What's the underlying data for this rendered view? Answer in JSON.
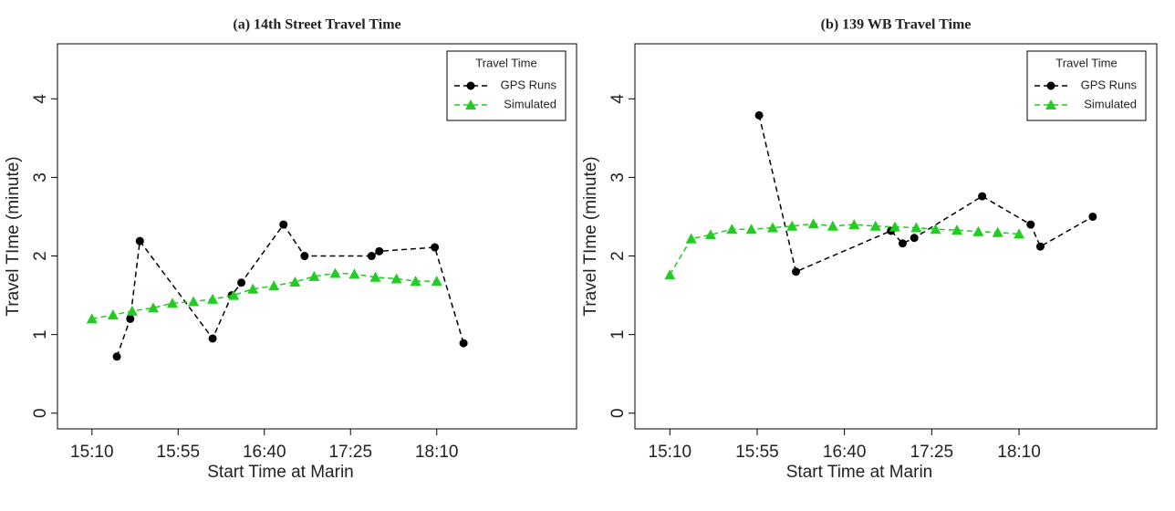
{
  "chart_data": [
    {
      "type": "line",
      "title": "(a) 14th Street Travel Time",
      "xlabel": "Start Time at Marin",
      "ylabel": "Travel TIme (minute)",
      "legend_title": "Travel Time",
      "legend": "top-right",
      "xlim": [
        "14:52",
        "19:23"
      ],
      "xticks": [
        "15:10",
        "15:55",
        "16:40",
        "17:25",
        "18:10"
      ],
      "ylim": [
        -0.2,
        4.7
      ],
      "yticks": [
        0,
        1,
        2,
        3,
        4
      ],
      "series": [
        {
          "name": "GPS Runs",
          "color": "#000000",
          "marker": "circle",
          "x": [
            "15:23",
            "15:30",
            "15:35",
            "16:13",
            "16:23",
            "16:28",
            "16:50",
            "17:01",
            "17:36",
            "17:40",
            "18:09",
            "18:24"
          ],
          "values": [
            0.72,
            1.2,
            2.19,
            0.95,
            1.5,
            1.66,
            2.4,
            2.0,
            2.0,
            2.06,
            2.11,
            0.89
          ]
        },
        {
          "name": "Simulated",
          "color": "#22cc22",
          "marker": "triangle",
          "x": [
            "15:10",
            "15:21",
            "15:31",
            "15:42",
            "15:52",
            "16:03",
            "16:13",
            "16:24",
            "16:34",
            "16:45",
            "16:56",
            "17:06",
            "17:17",
            "17:27",
            "17:38",
            "17:49",
            "17:59",
            "18:10"
          ],
          "values": [
            1.2,
            1.25,
            1.3,
            1.34,
            1.4,
            1.42,
            1.45,
            1.5,
            1.58,
            1.62,
            1.67,
            1.74,
            1.78,
            1.77,
            1.73,
            1.71,
            1.68,
            1.68
          ]
        }
      ]
    },
    {
      "type": "line",
      "title": "(b) 139 WB Travel Time",
      "xlabel": "Start Time at Marin",
      "ylabel": "Travel TIme (minute)",
      "legend_title": "Travel Time",
      "legend": "top-right",
      "xlim": [
        "14:52",
        "19:21"
      ],
      "xticks": [
        "15:10",
        "15:55",
        "16:40",
        "17:25",
        "18:10"
      ],
      "ylim": [
        -0.2,
        4.7
      ],
      "yticks": [
        0,
        1,
        2,
        3,
        4
      ],
      "series": [
        {
          "name": "GPS Runs",
          "color": "#000000",
          "marker": "circle",
          "x": [
            "15:56",
            "16:15",
            "17:04",
            "17:10",
            "17:16",
            "17:51",
            "18:16",
            "18:21",
            "18:48"
          ],
          "values": [
            3.79,
            1.8,
            2.32,
            2.16,
            2.23,
            2.76,
            2.4,
            2.12,
            2.5
          ]
        },
        {
          "name": "Simulated",
          "color": "#22cc22",
          "marker": "triangle",
          "x": [
            "15:10",
            "15:21",
            "15:31",
            "15:42",
            "15:52",
            "16:03",
            "16:13",
            "16:24",
            "16:34",
            "16:45",
            "16:56",
            "17:06",
            "17:17",
            "17:27",
            "17:38",
            "17:49",
            "17:59",
            "18:10"
          ],
          "values": [
            1.76,
            2.22,
            2.27,
            2.34,
            2.34,
            2.36,
            2.38,
            2.41,
            2.38,
            2.4,
            2.38,
            2.37,
            2.36,
            2.34,
            2.33,
            2.31,
            2.3,
            2.28
          ]
        }
      ]
    }
  ]
}
